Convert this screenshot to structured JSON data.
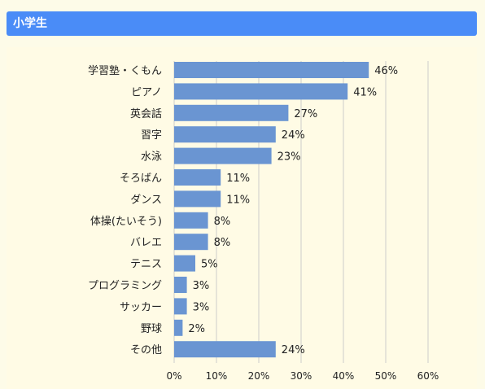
{
  "header": {
    "title": "小学生"
  },
  "chart_data": {
    "type": "bar",
    "orientation": "horizontal",
    "title": "",
    "xlabel": "",
    "ylabel": "",
    "categories": [
      "学習塾・くもん",
      "ピアノ",
      "英会話",
      "習字",
      "水泳",
      "そろばん",
      "ダンス",
      "体操(たいそう)",
      "バレエ",
      "テニス",
      "プログラミング",
      "サッカー",
      "野球",
      "その他"
    ],
    "values": [
      46,
      41,
      27,
      24,
      23,
      11,
      11,
      8,
      8,
      5,
      3,
      3,
      2,
      24
    ],
    "value_labels": [
      "46%",
      "41%",
      "27%",
      "24%",
      "23%",
      "11%",
      "11%",
      "8%",
      "8%",
      "5%",
      "3%",
      "3%",
      "2%",
      "24%"
    ],
    "xlim": [
      0,
      60
    ],
    "x_ticks": [
      0,
      10,
      20,
      30,
      40,
      50,
      60
    ],
    "x_tick_labels": [
      "0%",
      "10%",
      "20%",
      "30%",
      "40%",
      "50%",
      "60%"
    ],
    "grid": true,
    "bar_color": "#6a95d2",
    "grid_color": "#cccccc"
  }
}
